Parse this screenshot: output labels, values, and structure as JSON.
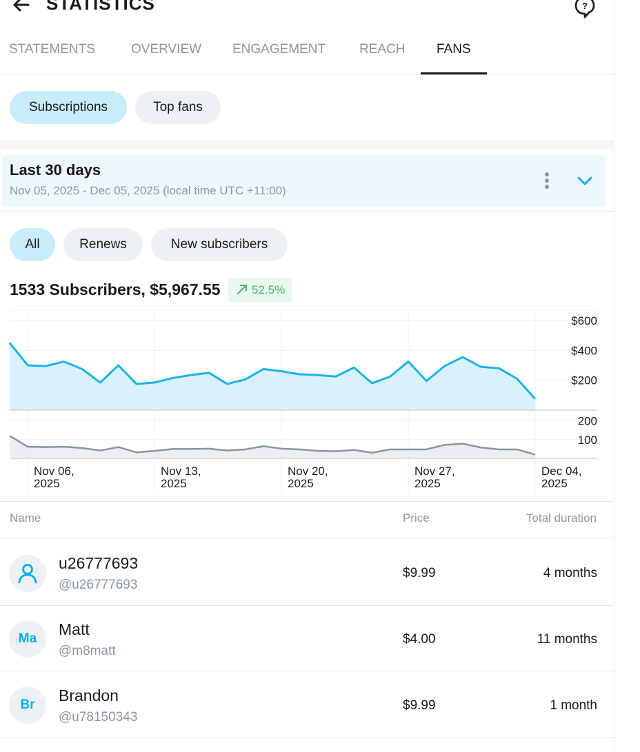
{
  "header": {
    "title": "STATISTICS",
    "back_icon": "arrow-left-icon",
    "help_icon": "help-chat-icon"
  },
  "tabs": [
    {
      "label": "STATEMENTS",
      "active": false
    },
    {
      "label": "OVERVIEW",
      "active": false
    },
    {
      "label": "ENGAGEMENT",
      "active": false
    },
    {
      "label": "REACH",
      "active": false
    },
    {
      "label": "FANS",
      "active": true
    }
  ],
  "fan_filters": [
    {
      "label": "Subscriptions",
      "active": true
    },
    {
      "label": "Top fans",
      "active": false
    }
  ],
  "period": {
    "title": "Last 30 days",
    "range": "Nov 05, 2025 - Dec 05, 2025 (local time UTC +11:00)"
  },
  "type_filters": [
    {
      "label": "All",
      "active": true
    },
    {
      "label": "Renews",
      "active": false
    },
    {
      "label": "New subscribers",
      "active": false
    }
  ],
  "summary": {
    "text": "1533 Subscribers, $5,967.55",
    "growth": "52.5%"
  },
  "colors": {
    "accent": "#00aeef",
    "active_pill": "#c8ecf8",
    "growth_green": "#3cbc66",
    "muted": "#8a96a3"
  },
  "chart_data": [
    {
      "type": "area",
      "title": "",
      "ylabel": "",
      "ylim": [
        0,
        600
      ],
      "y_ticks": [
        "$600",
        "$400",
        "$200"
      ],
      "y_tick_values": [
        600,
        400,
        200
      ],
      "x_ticks": [
        {
          "line1": "Nov 06,",
          "line2": "2025"
        },
        {
          "line1": "Nov 13,",
          "line2": "2025"
        },
        {
          "line1": "Nov 20,",
          "line2": "2025"
        },
        {
          "line1": "Nov 27,",
          "line2": "2025"
        },
        {
          "line1": "Dec 04,",
          "line2": "2025"
        }
      ],
      "x": [
        "Nov 05",
        "Nov 06",
        "Nov 07",
        "Nov 08",
        "Nov 09",
        "Nov 10",
        "Nov 11",
        "Nov 12",
        "Nov 13",
        "Nov 14",
        "Nov 15",
        "Nov 16",
        "Nov 17",
        "Nov 18",
        "Nov 19",
        "Nov 20",
        "Nov 21",
        "Nov 22",
        "Nov 23",
        "Nov 24",
        "Nov 25",
        "Nov 26",
        "Nov 27",
        "Nov 28",
        "Nov 29",
        "Nov 30",
        "Dec 01",
        "Dec 02",
        "Dec 03",
        "Dec 04"
      ],
      "series": [
        {
          "values": [
            450,
            300,
            295,
            325,
            275,
            185,
            300,
            175,
            185,
            215,
            235,
            250,
            175,
            205,
            275,
            260,
            240,
            235,
            225,
            285,
            180,
            225,
            325,
            195,
            295,
            355,
            290,
            280,
            210,
            75
          ]
        }
      ],
      "grid": true
    },
    {
      "type": "area",
      "title": "",
      "ylim": [
        0,
        250
      ],
      "y_ticks": [
        "200",
        "100"
      ],
      "y_tick_values": [
        200,
        100
      ],
      "x": [
        "Nov 05",
        "Nov 06",
        "Nov 07",
        "Nov 08",
        "Nov 09",
        "Nov 10",
        "Nov 11",
        "Nov 12",
        "Nov 13",
        "Nov 14",
        "Nov 15",
        "Nov 16",
        "Nov 17",
        "Nov 18",
        "Nov 19",
        "Nov 20",
        "Nov 21",
        "Nov 22",
        "Nov 23",
        "Nov 24",
        "Nov 25",
        "Nov 26",
        "Nov 27",
        "Nov 28",
        "Nov 29",
        "Nov 30",
        "Dec 01",
        "Dec 02",
        "Dec 03",
        "Dec 04"
      ],
      "series": [
        {
          "values": [
            120,
            62,
            60,
            62,
            55,
            42,
            60,
            32,
            40,
            50,
            50,
            52,
            42,
            48,
            65,
            52,
            48,
            40,
            38,
            45,
            30,
            48,
            48,
            48,
            72,
            78,
            58,
            48,
            48,
            20
          ]
        }
      ],
      "grid": true
    }
  ],
  "table": {
    "headers": {
      "name": "Name",
      "price": "Price",
      "duration": "Total duration"
    },
    "rows": [
      {
        "avatar": "",
        "avatar_icon": "user-icon",
        "name": "u26777693",
        "handle": "@u26777693",
        "price": "$9.99",
        "duration": "4 months"
      },
      {
        "avatar": "Ma",
        "name": "Matt",
        "handle": "@m8matt",
        "price": "$4.00",
        "duration": "11 months"
      },
      {
        "avatar": "Br",
        "name": "Brandon",
        "handle": "@u78150343",
        "price": "$9.99",
        "duration": "1 month"
      }
    ]
  }
}
